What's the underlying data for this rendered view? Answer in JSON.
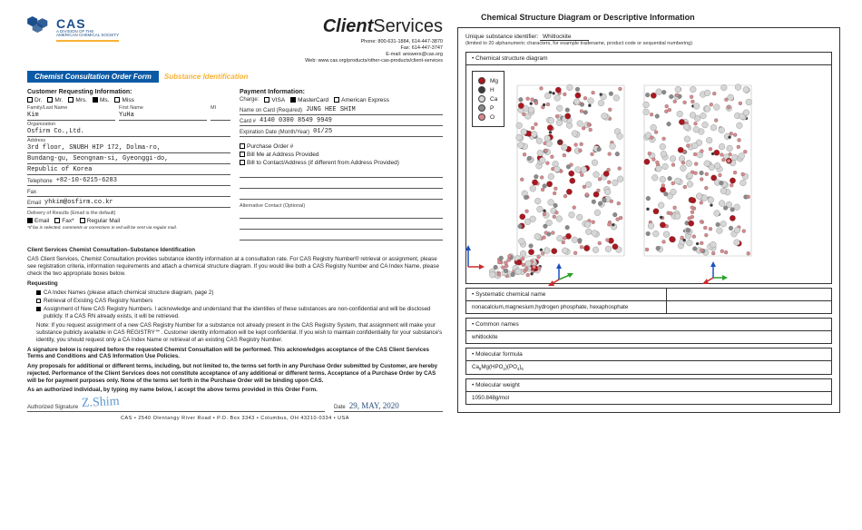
{
  "header": {
    "cas": "CAS",
    "cas_sub1": "A DIVISION OF THE",
    "cas_sub2": "AMERICAN CHEMICAL SOCIETY",
    "cs_bold": "Client",
    "cs_thin": "Services",
    "contact": {
      "phone": "Phone: 800-631-1884, 614-447-3870",
      "fax": "Fax: 614-447-3747",
      "email": "E-mail: answers@cas.org",
      "web": "Web: www.cas.org/products/other-cas-products/client-services"
    }
  },
  "bars": {
    "blue": "Chemist Consultation Order Form",
    "yellow": "Substance Identification"
  },
  "cust": {
    "heading": "Customer Requesting Information:",
    "titles": {
      "dr": "Dr.",
      "mr": "Mr.",
      "mrs": "Mrs.",
      "ms": "Ms.",
      "miss": "Miss"
    },
    "name_labels": {
      "last": "Family/Last Name",
      "first": "First Name",
      "mi": "MI"
    },
    "last": "Kim",
    "first": "YuHa",
    "org_label": "Organization",
    "org": "Osfirm Co.,Ltd.",
    "addr_label": "Address",
    "addr1": "3rd floor, SNUBH HIP 172, Dolma-ro,",
    "addr2": "Bundang-gu, Seongnam-si, Gyeonggi-do,",
    "addr3": "Republic of Korea",
    "tel_label": "Telephone",
    "tel": "+82-10-6215-6283",
    "fax_label": "Fax",
    "email_label": "Email",
    "email": "yhkim@osfirm.co.kr",
    "delivery_h": "Delivery of Results (Email is the default)",
    "deliv": {
      "email": "Email",
      "fax": "Fax*",
      "mail": "Regular Mail"
    },
    "fax_note": "*If fax is selected, comments or corrections in red will be sent via regular mail."
  },
  "pay": {
    "heading": "Payment Information:",
    "charge_label": "Charge:",
    "cards": {
      "visa": "VISA",
      "mc": "MasterCard",
      "amex": "American Express"
    },
    "name_label": "Name on Card (Required)",
    "name": "JUNG HEE SHIM",
    "cardno_label": "Card #",
    "cardno": "4140 0300 8549 9949",
    "exp_label": "Expiration Date (Month/Year)",
    "exp": "01/25",
    "po_label": "Purchase Order #",
    "bill1": "Bill Me at Address Provided",
    "bill2": "Bill to Contact/Address (if different from Address Provided)",
    "alt_label": "Alternative Contact (Optional)"
  },
  "body": {
    "h1": "Client Services Chemist Consultation–Substance Identification",
    "p1": "CAS Client Services, Chemist Consultation provides substance identity information at a consultation rate. For CAS Registry Number® retrieval or assignment, please see registration criteria, information requirements and attach a chemical structure diagram. If you would like both a CAS Registry Number and CA Index Name, please check the two appropriate boxes below.",
    "req_h": "Requesting",
    "r1": "CA Index Names (please attach chemical structure diagram, page 2)",
    "r2": "Retrieval of Existing CAS Registry Numbers",
    "r3": "Assignment of New CAS Registry Numbers. I acknowledge and understand that the identities of these substances are non-confidential and will be disclosed publicly. If a CAS RN already exists, it will be retrieved.",
    "note": "Note: If you request assignment of a new CAS Registry Number for a substance not already present in the CAS Registry System, that assignment will make your substance publicly available in CAS REGISTRY℠. Customer identity information will be kept confidential. If you wish to maintain confidentiality for your substance's identity, you should request only a CA Index Name or retrieval of an existing CAS Registry Number.",
    "p2": "A signature below is required before the requested Chemist Consultation will be performed. This acknowledges acceptance of the CAS Client Services Terms and Conditions and CAS Information Use Policies.",
    "p3": "Any proposals for additional or different terms, including, but not limited to, the terms set forth in any Purchase Order submitted by Customer, are hereby rejected. Performance of the Client Services does not constitute acceptance of any additional or different terms. Acceptance of a Purchase Order by CAS will be for payment purposes only. None of the terms set forth in the Purchase Order will be binding upon CAS.",
    "p4": "As an authorized individual, by typing my name below, I accept the above terms provided in this Order Form.",
    "sig_label": "Authorized Signature",
    "sig_val": "Z.Shim",
    "date_label": "Date",
    "date_val": "29, MAY, 2020",
    "footer": "CAS   •   2540 Olentangy River Road   •   P.O. Box 3343   •   Columbus, OH  43210-0334   •   USA"
  },
  "right": {
    "title": "Chemical Structure Diagram or Descriptive Information",
    "uid_label": "Unique substance identifier:",
    "uid_val": "Whitlockite",
    "uid_sub": "(limited to 20 alphanumeric characters, for example tradename, product code or sequential numbering)",
    "struct_h": "• Chemical structure diagram",
    "legend": [
      {
        "el": "Mg",
        "color": "#a81820"
      },
      {
        "el": "H",
        "color": "#3a3a3a"
      },
      {
        "el": "Ca",
        "color": "#d6d6d6"
      },
      {
        "el": "P",
        "color": "#8a8a8a"
      },
      {
        "el": "O",
        "color": "#d88a8e"
      }
    ],
    "sys_h": "• Systematic chemical name",
    "sys_v": "nonacalcium,magnesium,hydrogen phosphate, hexaphosphate",
    "com_h": "• Common names",
    "com_v": "whitlockite",
    "mf_h": "• Molecular formula",
    "mf_v": "Ca9Mg(HPO4)(PO4)6",
    "mw_h": "• Molecular weight",
    "mw_v": "1050.848g/mol"
  }
}
